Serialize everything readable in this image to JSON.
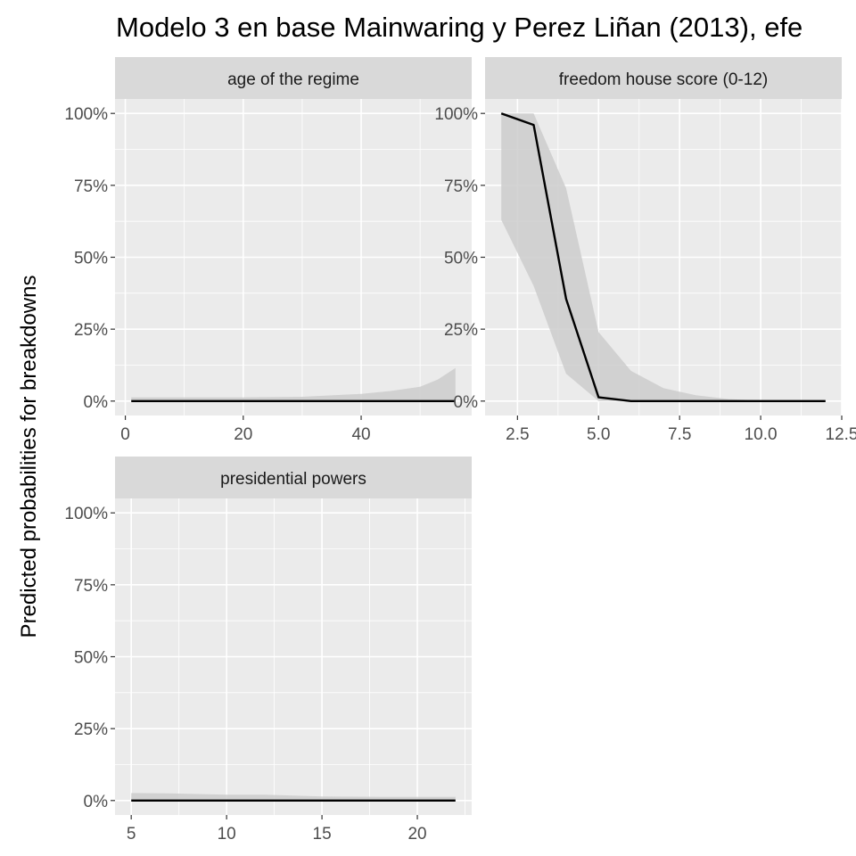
{
  "title": "Modelo 3 en base Mainwaring y Perez Liñan (2013), efe",
  "ylabel": "Predicted probabilities for breakdowns",
  "colors": {
    "panel_background": "#ebebeb",
    "strip_background": "#d9d9d9",
    "gridline": "#ffffff",
    "line": "#000000",
    "ribbon": "#cccccc",
    "tick_text": "#4d4d4d"
  },
  "chart_data": {
    "type": "line",
    "facet_layout": "2 columns, 2 rows",
    "y_tick_labels": [
      "0%",
      "25%",
      "50%",
      "75%",
      "100%"
    ],
    "ylim": [
      0,
      1
    ],
    "grid": true,
    "legend": "none",
    "panels": [
      {
        "strip": "age of the regime",
        "xlim": [
          -1.75,
          58.75
        ],
        "x_ticks": [
          0,
          20,
          40
        ],
        "x_tick_labels": [
          "0",
          "20",
          "40"
        ],
        "x": [
          1,
          10,
          20,
          30,
          40,
          45,
          50,
          53,
          56
        ],
        "y": [
          0.0,
          0.0,
          0.0,
          0.0,
          0.0,
          0.0,
          0.0,
          0.0,
          0.0
        ],
        "lower": [
          0.0,
          0.0,
          0.0,
          0.0,
          0.0,
          0.0,
          0.0,
          0.0,
          0.0
        ],
        "upper": [
          0.013,
          0.013,
          0.013,
          0.015,
          0.025,
          0.035,
          0.05,
          0.075,
          0.115
        ]
      },
      {
        "strip": "freedom house score (0-12)",
        "xlim": [
          1.5,
          12.5
        ],
        "x_ticks": [
          2.5,
          5.0,
          7.5,
          10.0,
          12.5
        ],
        "x_tick_labels": [
          "2.5",
          "5.0",
          "7.5",
          "10.0",
          "12.5"
        ],
        "x": [
          2,
          3,
          4,
          5,
          6,
          7,
          8,
          9,
          10,
          11,
          12
        ],
        "y": [
          1.0,
          0.96,
          0.355,
          0.013,
          0.0,
          0.0,
          0.0,
          0.0,
          0.0,
          0.0,
          0.0
        ],
        "lower": [
          0.63,
          0.4,
          0.095,
          0.0,
          0.0,
          0.0,
          0.0,
          0.0,
          0.0,
          0.0,
          0.0
        ],
        "upper": [
          1.0,
          1.0,
          0.74,
          0.24,
          0.105,
          0.045,
          0.02,
          0.007,
          0.002,
          0.0,
          0.0
        ]
      },
      {
        "strip": "presidential powers",
        "xlim": [
          4.15,
          22.85
        ],
        "x_ticks": [
          5,
          10,
          15,
          20
        ],
        "x_tick_labels": [
          "5",
          "10",
          "15",
          "20"
        ],
        "x": [
          5,
          7,
          10,
          12,
          15,
          18,
          20,
          22
        ],
        "y": [
          0.0,
          0.0,
          0.0,
          0.0,
          0.0,
          0.0,
          0.0,
          0.0
        ],
        "lower": [
          0.0,
          0.0,
          0.0,
          0.0,
          0.0,
          0.0,
          0.0,
          0.0
        ],
        "upper": [
          0.026,
          0.025,
          0.02,
          0.02,
          0.014,
          0.013,
          0.013,
          0.013
        ]
      }
    ]
  }
}
